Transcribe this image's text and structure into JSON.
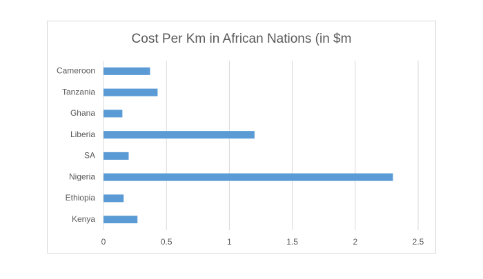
{
  "chart_data": {
    "type": "bar",
    "orientation": "horizontal",
    "title": "Cost Per Km in African Nations (in $m",
    "categories": [
      "Cameroon",
      "Tanzania",
      "Ghana",
      "Liberia",
      "SA",
      "Nigeria",
      "Ethiopia",
      "Kenya"
    ],
    "values": [
      0.37,
      0.43,
      0.15,
      1.2,
      0.2,
      2.3,
      0.16,
      0.27
    ],
    "color": "#5b9bd5",
    "xlim": [
      0,
      2.5
    ],
    "xticks": [
      0,
      0.5,
      1,
      1.5,
      2,
      2.5
    ],
    "grid": true
  }
}
